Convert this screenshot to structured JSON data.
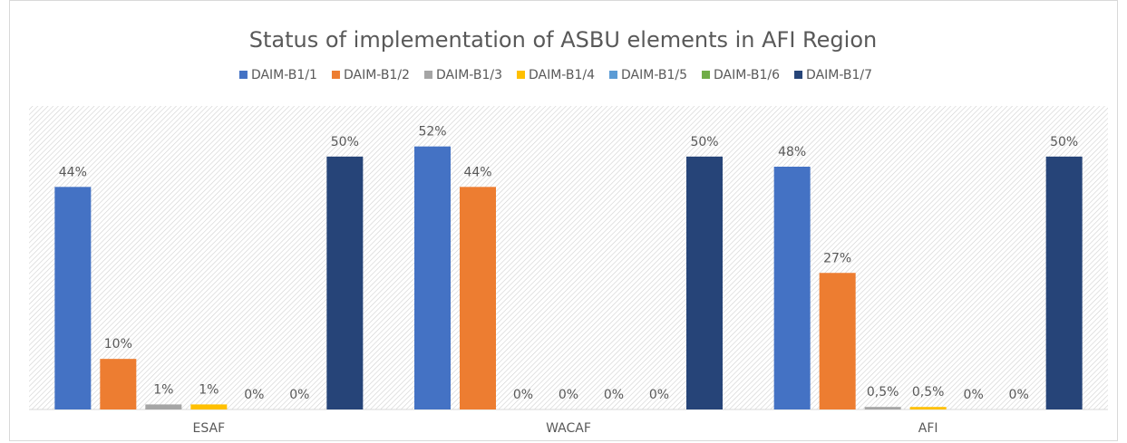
{
  "chart_data": {
    "type": "bar",
    "title": "Status of implementation of ASBU elements in AFI Region",
    "categories": [
      "ESAF",
      "WACAF",
      "AFI"
    ],
    "ylim": [
      0,
      60
    ],
    "series": [
      {
        "name": "DAIM-B1/1",
        "color": "#4472c4",
        "values": [
          44,
          52,
          48
        ],
        "value_labels": [
          "44%",
          "52%",
          "48%"
        ]
      },
      {
        "name": "DAIM-B1/2",
        "color": "#ed7d31",
        "values": [
          10,
          44,
          27
        ],
        "value_labels": [
          "10%",
          "44%",
          "27%"
        ]
      },
      {
        "name": "DAIM-B1/3",
        "color": "#a5a5a5",
        "values": [
          1,
          0,
          0.5
        ],
        "value_labels": [
          "1%",
          "0%",
          "0,5%"
        ]
      },
      {
        "name": "DAIM-B1/4",
        "color": "#ffc000",
        "values": [
          1,
          0,
          0.5
        ],
        "value_labels": [
          "1%",
          "0%",
          "0,5%"
        ]
      },
      {
        "name": "DAIM-B1/5",
        "color": "#5b9bd5",
        "values": [
          0,
          0,
          0
        ],
        "value_labels": [
          "0%",
          "0%",
          "0%"
        ]
      },
      {
        "name": "DAIM-B1/6",
        "color": "#70ad47",
        "values": [
          0,
          0,
          0
        ],
        "value_labels": [
          "0%",
          "0%",
          "0%"
        ]
      },
      {
        "name": "DAIM-B1/7",
        "color": "#264478",
        "values": [
          50,
          50,
          50
        ],
        "value_labels": [
          "50%",
          "50%",
          "50%"
        ]
      }
    ]
  }
}
